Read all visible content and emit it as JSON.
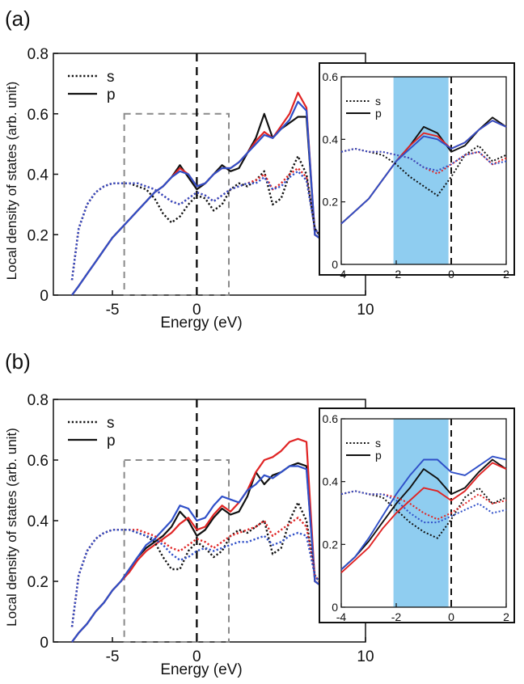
{
  "colors": {
    "black": "#111111",
    "red": "#e02424",
    "blue": "#2f4fc8",
    "shade": "#8fcdf0",
    "dash_box": "#8a8a8a"
  },
  "chart_data": [
    {
      "panel_label": "(a)",
      "type": "line",
      "xlabel": "Energy (eV)",
      "ylabel": "Local density of states (arb. unit)",
      "xlim": [
        -8.5,
        10
      ],
      "ylim": [
        0,
        0.8
      ],
      "xticks": [
        "-5",
        "0",
        "10"
      ],
      "yticks": [
        "0",
        "0.2",
        "0.4",
        "0.6",
        "0.8"
      ],
      "legend": [
        {
          "label": "s",
          "style": "dotted"
        },
        {
          "label": "p",
          "style": "solid"
        }
      ],
      "dashed_box": {
        "x": [
          -4.3,
          1.9
        ],
        "y": [
          0,
          0.6
        ]
      },
      "vline_x": 0,
      "x": [
        -7.4,
        -7,
        -6.5,
        -6,
        -5.5,
        -5,
        -4.5,
        -4,
        -3.5,
        -3,
        -2.5,
        -2,
        -1.5,
        -1,
        -0.5,
        0,
        0.5,
        1,
        1.5,
        2,
        2.5,
        3,
        3.5,
        4,
        4.5,
        5,
        5.5,
        6,
        6.5,
        7,
        7.5,
        8,
        8.5,
        9
      ],
      "series": [
        {
          "line": "solid",
          "color": "black",
          "values": [
            0,
            0.03,
            0.07,
            0.11,
            0.15,
            0.19,
            0.22,
            0.25,
            0.28,
            0.31,
            0.34,
            0.36,
            0.39,
            0.43,
            0.39,
            0.35,
            0.37,
            0.4,
            0.43,
            0.41,
            0.42,
            0.47,
            0.52,
            0.6,
            0.52,
            0.55,
            0.57,
            0.59,
            0.59,
            0.2,
            0.18,
            0.15,
            0.12,
            0.1
          ]
        },
        {
          "line": "solid",
          "color": "red",
          "values": [
            0,
            0.03,
            0.07,
            0.11,
            0.15,
            0.19,
            0.22,
            0.25,
            0.28,
            0.31,
            0.34,
            0.36,
            0.39,
            0.42,
            0.4,
            0.36,
            0.37,
            0.4,
            0.42,
            0.42,
            0.44,
            0.47,
            0.51,
            0.54,
            0.52,
            0.56,
            0.6,
            0.67,
            0.62,
            0.2,
            0.18,
            0.15,
            0.12,
            0.1
          ]
        },
        {
          "line": "solid",
          "color": "blue",
          "values": [
            0,
            0.03,
            0.07,
            0.11,
            0.15,
            0.19,
            0.22,
            0.25,
            0.28,
            0.31,
            0.34,
            0.36,
            0.39,
            0.41,
            0.4,
            0.36,
            0.37,
            0.4,
            0.42,
            0.42,
            0.44,
            0.47,
            0.5,
            0.53,
            0.52,
            0.55,
            0.58,
            0.64,
            0.61,
            0.2,
            0.18,
            0.15,
            0.12,
            0.1
          ]
        },
        {
          "line": "dotted",
          "color": "black",
          "values": [
            0.05,
            0.22,
            0.3,
            0.34,
            0.36,
            0.37,
            0.37,
            0.37,
            0.36,
            0.35,
            0.32,
            0.27,
            0.24,
            0.26,
            0.3,
            0.33,
            0.32,
            0.28,
            0.3,
            0.35,
            0.37,
            0.36,
            0.38,
            0.41,
            0.3,
            0.32,
            0.4,
            0.46,
            0.4,
            0.22,
            0.18,
            0.13,
            0.1,
            0.08
          ]
        },
        {
          "line": "dotted",
          "color": "red",
          "values": [
            0.05,
            0.22,
            0.3,
            0.34,
            0.36,
            0.37,
            0.37,
            0.37,
            0.37,
            0.36,
            0.35,
            0.33,
            0.31,
            0.3,
            0.32,
            0.34,
            0.33,
            0.31,
            0.33,
            0.35,
            0.36,
            0.37,
            0.38,
            0.4,
            0.35,
            0.37,
            0.4,
            0.42,
            0.39,
            0.22,
            0.18,
            0.13,
            0.1,
            0.08
          ]
        },
        {
          "line": "dotted",
          "color": "blue",
          "values": [
            0.05,
            0.22,
            0.3,
            0.34,
            0.36,
            0.37,
            0.37,
            0.37,
            0.37,
            0.36,
            0.35,
            0.33,
            0.31,
            0.3,
            0.32,
            0.34,
            0.33,
            0.31,
            0.33,
            0.35,
            0.36,
            0.37,
            0.37,
            0.39,
            0.35,
            0.36,
            0.39,
            0.41,
            0.38,
            0.22,
            0.18,
            0.13,
            0.1,
            0.08
          ]
        }
      ],
      "inset": {
        "xlim": [
          -4,
          2
        ],
        "ylim": [
          0,
          0.6
        ],
        "xticks": [
          "-4",
          "-2",
          "0",
          "2"
        ],
        "yticks": [
          "0",
          "0.2",
          "0.4",
          "0.6"
        ],
        "shaded_x": [
          -2.1,
          -0.1
        ],
        "vline_x": 0,
        "legend": [
          {
            "label": "s",
            "style": "dotted"
          },
          {
            "label": "p",
            "style": "solid"
          }
        ],
        "x": [
          -4,
          -3.5,
          -3,
          -2.5,
          -2,
          -1.5,
          -1,
          -0.5,
          0,
          0.5,
          1,
          1.5,
          2
        ],
        "series": [
          {
            "line": "solid",
            "color": "black",
            "values": [
              0.13,
              0.17,
              0.21,
              0.27,
              0.33,
              0.38,
              0.44,
              0.42,
              0.36,
              0.38,
              0.43,
              0.47,
              0.44
            ]
          },
          {
            "line": "solid",
            "color": "red",
            "values": [
              0.13,
              0.17,
              0.21,
              0.27,
              0.33,
              0.38,
              0.42,
              0.41,
              0.37,
              0.39,
              0.43,
              0.46,
              0.44
            ]
          },
          {
            "line": "solid",
            "color": "blue",
            "values": [
              0.13,
              0.17,
              0.21,
              0.27,
              0.33,
              0.37,
              0.41,
              0.4,
              0.37,
              0.39,
              0.43,
              0.46,
              0.44
            ]
          },
          {
            "line": "dotted",
            "color": "black",
            "values": [
              0.36,
              0.37,
              0.36,
              0.35,
              0.32,
              0.28,
              0.25,
              0.22,
              0.28,
              0.35,
              0.38,
              0.33,
              0.35
            ]
          },
          {
            "line": "dotted",
            "color": "red",
            "values": [
              0.36,
              0.37,
              0.36,
              0.36,
              0.35,
              0.34,
              0.31,
              0.29,
              0.32,
              0.35,
              0.36,
              0.32,
              0.34
            ]
          },
          {
            "line": "dotted",
            "color": "blue",
            "values": [
              0.36,
              0.37,
              0.36,
              0.36,
              0.35,
              0.34,
              0.31,
              0.3,
              0.32,
              0.35,
              0.36,
              0.32,
              0.33
            ]
          }
        ]
      }
    },
    {
      "panel_label": "(b)",
      "type": "line",
      "xlabel": "Energy (eV)",
      "ylabel": "Local density of states (arb. unit)",
      "xlim": [
        -8.5,
        10
      ],
      "ylim": [
        0,
        0.8
      ],
      "xticks": [
        "-5",
        "0",
        "10"
      ],
      "yticks": [
        "0",
        "0.2",
        "0.4",
        "0.6",
        "0.8"
      ],
      "legend": [
        {
          "label": "s",
          "style": "dotted"
        },
        {
          "label": "p",
          "style": "solid"
        }
      ],
      "dashed_box": {
        "x": [
          -4.3,
          1.9
        ],
        "y": [
          0,
          0.6
        ]
      },
      "vline_x": 0,
      "x": [
        -7.4,
        -7,
        -6.5,
        -6,
        -5.5,
        -5,
        -4.5,
        -4,
        -3.5,
        -3,
        -2.5,
        -2,
        -1.5,
        -1,
        -0.5,
        0,
        0.5,
        1,
        1.5,
        2,
        2.5,
        3,
        3.5,
        4,
        4.5,
        5,
        5.5,
        6,
        6.5,
        7,
        7.5,
        8,
        8.5,
        9
      ],
      "series": [
        {
          "line": "solid",
          "color": "black",
          "values": [
            0,
            0.03,
            0.06,
            0.1,
            0.13,
            0.17,
            0.2,
            0.24,
            0.28,
            0.31,
            0.33,
            0.35,
            0.38,
            0.43,
            0.4,
            0.35,
            0.37,
            0.41,
            0.44,
            0.42,
            0.43,
            0.48,
            0.56,
            0.52,
            0.55,
            0.56,
            0.58,
            0.59,
            0.58,
            0.2,
            0.18,
            0.15,
            0.12,
            0.1
          ]
        },
        {
          "line": "solid",
          "color": "red",
          "values": [
            0,
            0.03,
            0.06,
            0.1,
            0.13,
            0.17,
            0.2,
            0.23,
            0.27,
            0.3,
            0.32,
            0.34,
            0.36,
            0.39,
            0.41,
            0.37,
            0.38,
            0.42,
            0.45,
            0.43,
            0.46,
            0.5,
            0.56,
            0.6,
            0.61,
            0.63,
            0.66,
            0.67,
            0.66,
            0.2,
            0.18,
            0.15,
            0.12,
            0.1
          ]
        },
        {
          "line": "solid",
          "color": "blue",
          "values": [
            0,
            0.03,
            0.06,
            0.1,
            0.13,
            0.17,
            0.2,
            0.24,
            0.28,
            0.32,
            0.34,
            0.37,
            0.4,
            0.45,
            0.44,
            0.4,
            0.41,
            0.45,
            0.48,
            0.47,
            0.46,
            0.5,
            0.52,
            0.55,
            0.54,
            0.56,
            0.58,
            0.58,
            0.57,
            0.2,
            0.18,
            0.15,
            0.12,
            0.1
          ]
        },
        {
          "line": "dotted",
          "color": "black",
          "values": [
            0.05,
            0.22,
            0.3,
            0.34,
            0.36,
            0.37,
            0.37,
            0.37,
            0.36,
            0.35,
            0.33,
            0.28,
            0.24,
            0.24,
            0.3,
            0.33,
            0.31,
            0.28,
            0.3,
            0.35,
            0.37,
            0.36,
            0.38,
            0.4,
            0.29,
            0.31,
            0.4,
            0.46,
            0.4,
            0.22,
            0.18,
            0.13,
            0.1,
            0.08
          ]
        },
        {
          "line": "dotted",
          "color": "red",
          "values": [
            0.05,
            0.22,
            0.3,
            0.34,
            0.36,
            0.37,
            0.37,
            0.37,
            0.37,
            0.36,
            0.35,
            0.33,
            0.31,
            0.3,
            0.32,
            0.34,
            0.33,
            0.31,
            0.33,
            0.35,
            0.36,
            0.37,
            0.38,
            0.4,
            0.35,
            0.37,
            0.39,
            0.41,
            0.38,
            0.22,
            0.18,
            0.13,
            0.1,
            0.08
          ]
        },
        {
          "line": "dotted",
          "color": "blue",
          "values": [
            0.05,
            0.22,
            0.3,
            0.34,
            0.36,
            0.37,
            0.37,
            0.37,
            0.36,
            0.35,
            0.34,
            0.32,
            0.29,
            0.27,
            0.28,
            0.3,
            0.31,
            0.3,
            0.31,
            0.32,
            0.33,
            0.33,
            0.34,
            0.35,
            0.32,
            0.33,
            0.35,
            0.36,
            0.35,
            0.22,
            0.18,
            0.13,
            0.1,
            0.08
          ]
        }
      ],
      "inset": {
        "xlim": [
          -4,
          2
        ],
        "ylim": [
          0,
          0.6
        ],
        "xticks": [
          "-4",
          "-2",
          "0",
          "2"
        ],
        "yticks": [
          "0",
          "0.2",
          "0.4",
          "0.6"
        ],
        "shaded_x": [
          -2.1,
          -0.1
        ],
        "vline_x": 0,
        "legend": [
          {
            "label": "s",
            "style": "dotted"
          },
          {
            "label": "p",
            "style": "solid"
          }
        ],
        "x": [
          -4,
          -3.5,
          -3,
          -2.5,
          -2,
          -1.5,
          -1,
          -0.5,
          0,
          0.5,
          1,
          1.5,
          2
        ],
        "series": [
          {
            "line": "solid",
            "color": "black",
            "values": [
              0.12,
              0.16,
              0.21,
              0.27,
              0.33,
              0.38,
              0.44,
              0.41,
              0.36,
              0.38,
              0.43,
              0.47,
              0.44
            ]
          },
          {
            "line": "solid",
            "color": "red",
            "values": [
              0.11,
              0.15,
              0.19,
              0.25,
              0.3,
              0.34,
              0.38,
              0.37,
              0.34,
              0.37,
              0.42,
              0.46,
              0.44
            ]
          },
          {
            "line": "solid",
            "color": "blue",
            "values": [
              0.12,
              0.16,
              0.22,
              0.29,
              0.36,
              0.42,
              0.47,
              0.47,
              0.43,
              0.42,
              0.45,
              0.48,
              0.47
            ]
          },
          {
            "line": "dotted",
            "color": "black",
            "values": [
              0.36,
              0.37,
              0.36,
              0.35,
              0.31,
              0.27,
              0.24,
              0.22,
              0.28,
              0.35,
              0.38,
              0.33,
              0.35
            ]
          },
          {
            "line": "dotted",
            "color": "red",
            "values": [
              0.36,
              0.37,
              0.36,
              0.36,
              0.35,
              0.33,
              0.3,
              0.28,
              0.3,
              0.33,
              0.36,
              0.33,
              0.34
            ]
          },
          {
            "line": "dotted",
            "color": "blue",
            "values": [
              0.36,
              0.37,
              0.36,
              0.36,
              0.34,
              0.3,
              0.27,
              0.27,
              0.29,
              0.31,
              0.33,
              0.3,
              0.31
            ]
          }
        ]
      }
    }
  ]
}
